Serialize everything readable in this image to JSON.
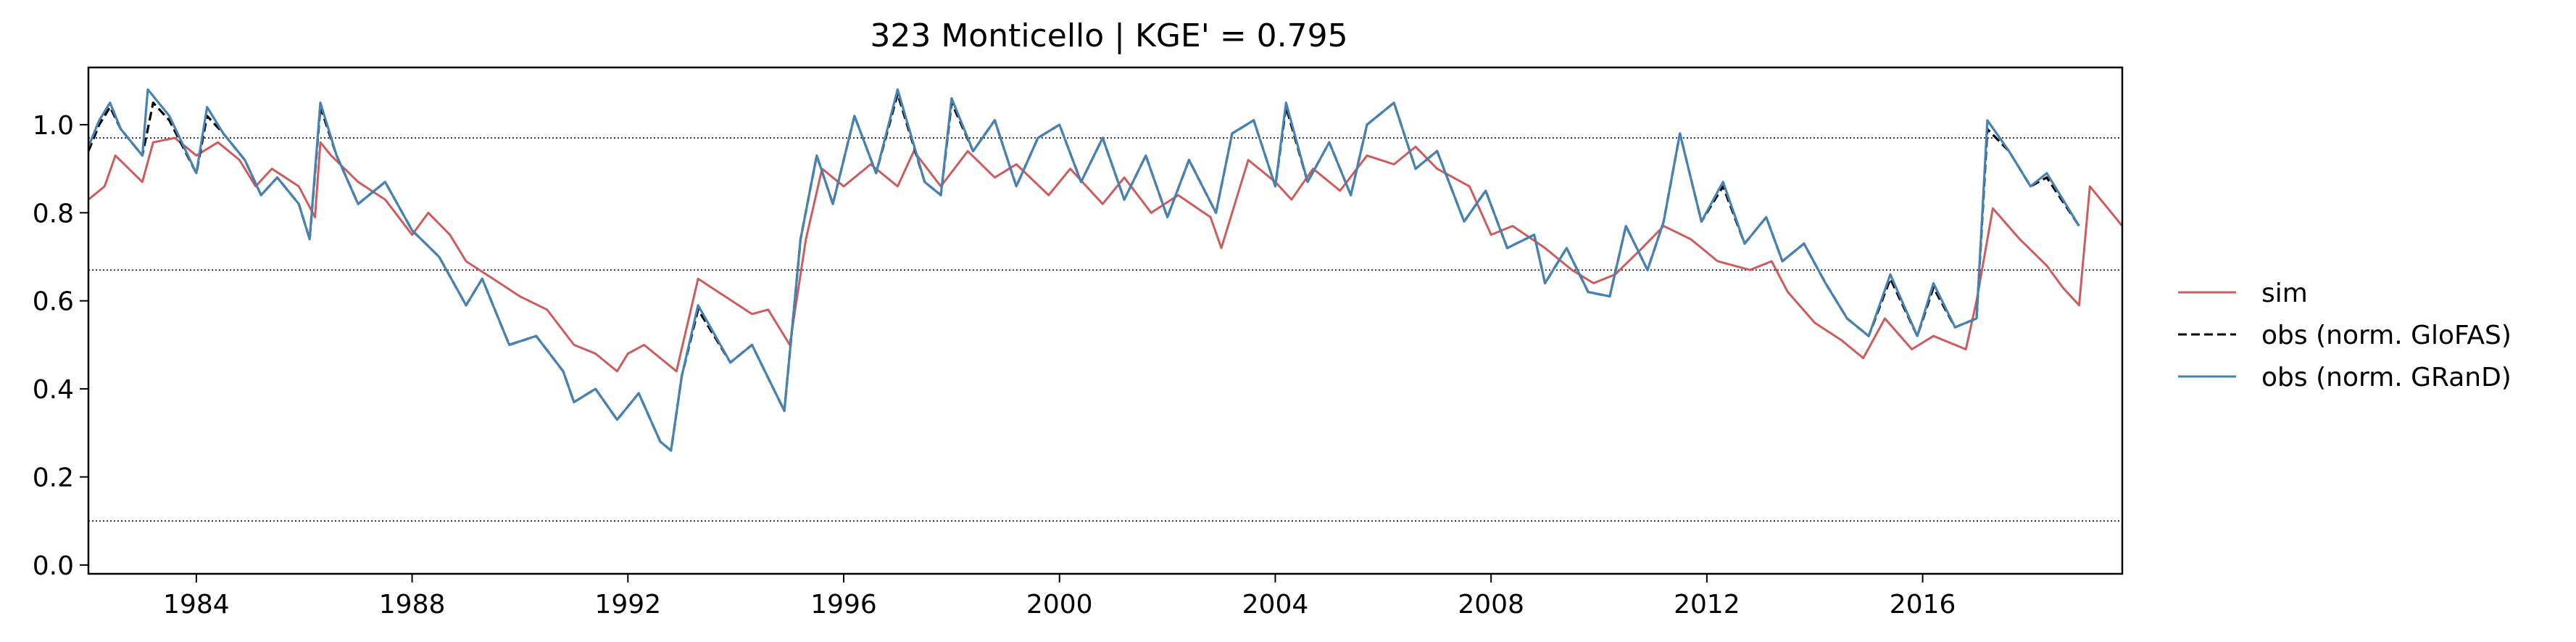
{
  "chart_data": {
    "type": "line",
    "title": "323  Monticello | KGE' = 0.795",
    "xlabel": "",
    "ylabel": "",
    "xlim": [
      1982.0,
      2019.7
    ],
    "ylim": [
      -0.02,
      1.13
    ],
    "x_ticks": [
      1984,
      1988,
      1992,
      1996,
      2000,
      2004,
      2008,
      2012,
      2016
    ],
    "x_tick_labels": [
      "1984",
      "1988",
      "1992",
      "1996",
      "2000",
      "2004",
      "2008",
      "2012",
      "2016"
    ],
    "y_ticks": [
      0.0,
      0.2,
      0.4,
      0.6,
      0.8,
      1.0
    ],
    "y_tick_labels": [
      "0.0",
      "0.2",
      "0.4",
      "0.6",
      "0.8",
      "1.0"
    ],
    "reference_lines": [
      0.97,
      0.67,
      0.1
    ],
    "grid": false,
    "legend_position": "right-outside",
    "series": [
      {
        "name": "sim",
        "color": "#cd5c5c",
        "style": "solid",
        "points": [
          [
            1982.0,
            0.83
          ],
          [
            1982.3,
            0.86
          ],
          [
            1982.5,
            0.93
          ],
          [
            1983.0,
            0.87
          ],
          [
            1983.2,
            0.96
          ],
          [
            1983.6,
            0.97
          ],
          [
            1984.0,
            0.93
          ],
          [
            1984.4,
            0.96
          ],
          [
            1984.8,
            0.92
          ],
          [
            1985.1,
            0.86
          ],
          [
            1985.4,
            0.9
          ],
          [
            1985.9,
            0.86
          ],
          [
            1986.2,
            0.79
          ],
          [
            1986.3,
            0.96
          ],
          [
            1986.5,
            0.93
          ],
          [
            1987.0,
            0.87
          ],
          [
            1987.5,
            0.83
          ],
          [
            1988.0,
            0.75
          ],
          [
            1988.3,
            0.8
          ],
          [
            1988.7,
            0.75
          ],
          [
            1989.0,
            0.69
          ],
          [
            1989.5,
            0.65
          ],
          [
            1990.0,
            0.61
          ],
          [
            1990.5,
            0.58
          ],
          [
            1991.0,
            0.5
          ],
          [
            1991.4,
            0.48
          ],
          [
            1991.8,
            0.44
          ],
          [
            1992.0,
            0.48
          ],
          [
            1992.3,
            0.5
          ],
          [
            1992.9,
            0.44
          ],
          [
            1993.3,
            0.65
          ],
          [
            1993.8,
            0.61
          ],
          [
            1994.3,
            0.57
          ],
          [
            1994.6,
            0.58
          ],
          [
            1995.0,
            0.5
          ],
          [
            1995.3,
            0.74
          ],
          [
            1995.6,
            0.9
          ],
          [
            1996.0,
            0.86
          ],
          [
            1996.5,
            0.91
          ],
          [
            1997.0,
            0.86
          ],
          [
            1997.3,
            0.94
          ],
          [
            1997.8,
            0.86
          ],
          [
            1998.3,
            0.94
          ],
          [
            1998.8,
            0.88
          ],
          [
            1999.2,
            0.91
          ],
          [
            1999.8,
            0.84
          ],
          [
            2000.2,
            0.9
          ],
          [
            2000.8,
            0.82
          ],
          [
            2001.2,
            0.88
          ],
          [
            2001.7,
            0.8
          ],
          [
            2002.2,
            0.84
          ],
          [
            2002.8,
            0.79
          ],
          [
            2003.0,
            0.72
          ],
          [
            2003.5,
            0.92
          ],
          [
            2004.0,
            0.87
          ],
          [
            2004.3,
            0.83
          ],
          [
            2004.7,
            0.9
          ],
          [
            2005.2,
            0.85
          ],
          [
            2005.7,
            0.93
          ],
          [
            2006.2,
            0.91
          ],
          [
            2006.6,
            0.95
          ],
          [
            2007.0,
            0.9
          ],
          [
            2007.6,
            0.86
          ],
          [
            2008.0,
            0.75
          ],
          [
            2008.4,
            0.77
          ],
          [
            2009.0,
            0.72
          ],
          [
            2009.5,
            0.67
          ],
          [
            2009.9,
            0.64
          ],
          [
            2010.3,
            0.66
          ],
          [
            2010.8,
            0.72
          ],
          [
            2011.2,
            0.77
          ],
          [
            2011.7,
            0.74
          ],
          [
            2012.2,
            0.69
          ],
          [
            2012.8,
            0.67
          ],
          [
            2013.2,
            0.69
          ],
          [
            2013.5,
            0.62
          ],
          [
            2014.0,
            0.55
          ],
          [
            2014.5,
            0.51
          ],
          [
            2014.9,
            0.47
          ],
          [
            2015.3,
            0.56
          ],
          [
            2015.8,
            0.49
          ],
          [
            2016.2,
            0.52
          ],
          [
            2016.8,
            0.49
          ],
          [
            2017.0,
            0.6
          ],
          [
            2017.3,
            0.81
          ],
          [
            2017.8,
            0.74
          ],
          [
            2018.3,
            0.68
          ],
          [
            2018.6,
            0.63
          ],
          [
            2018.9,
            0.59
          ],
          [
            2019.1,
            0.86
          ],
          [
            2019.7,
            0.77
          ]
        ]
      },
      {
        "name": "obs (norm. GloFAS)",
        "color": "#000000",
        "style": "dashed",
        "points": [
          [
            1982.0,
            0.94
          ],
          [
            1982.2,
            1.0
          ],
          [
            1982.4,
            1.04
          ],
          [
            1982.6,
            0.99
          ],
          [
            1983.0,
            0.93
          ],
          [
            1983.2,
            1.05
          ],
          [
            1983.5,
            1.01
          ],
          [
            1984.0,
            0.89
          ],
          [
            1984.2,
            1.02
          ],
          [
            1984.5,
            0.98
          ],
          [
            1984.9,
            0.92
          ],
          [
            1985.2,
            0.84
          ],
          [
            1985.5,
            0.88
          ],
          [
            1985.9,
            0.82
          ],
          [
            1986.1,
            0.74
          ],
          [
            1986.3,
            1.04
          ],
          [
            1986.6,
            0.93
          ],
          [
            1987.0,
            0.82
          ],
          [
            1987.5,
            0.87
          ],
          [
            1988.0,
            0.76
          ],
          [
            1988.5,
            0.7
          ],
          [
            1989.0,
            0.59
          ],
          [
            1989.3,
            0.65
          ],
          [
            1989.8,
            0.5
          ],
          [
            1990.3,
            0.52
          ],
          [
            1990.8,
            0.44
          ],
          [
            1991.0,
            0.37
          ],
          [
            1991.4,
            0.4
          ],
          [
            1991.8,
            0.33
          ],
          [
            1992.2,
            0.39
          ],
          [
            1992.6,
            0.28
          ],
          [
            1992.8,
            0.26
          ],
          [
            1993.0,
            0.43
          ],
          [
            1993.3,
            0.58
          ],
          [
            1993.9,
            0.46
          ],
          [
            1994.3,
            0.5
          ],
          [
            1994.9,
            0.35
          ],
          [
            1995.2,
            0.74
          ],
          [
            1995.5,
            0.93
          ],
          [
            1995.8,
            0.82
          ],
          [
            1996.2,
            1.02
          ],
          [
            1996.6,
            0.89
          ],
          [
            1997.0,
            1.07
          ],
          [
            1997.5,
            0.87
          ],
          [
            1997.8,
            0.84
          ],
          [
            1998.0,
            1.05
          ],
          [
            1998.4,
            0.94
          ],
          [
            1998.8,
            1.01
          ],
          [
            1999.2,
            0.86
          ],
          [
            1999.6,
            0.97
          ],
          [
            2000.0,
            1.0
          ],
          [
            2000.4,
            0.87
          ],
          [
            2000.8,
            0.97
          ],
          [
            2001.2,
            0.83
          ],
          [
            2001.6,
            0.93
          ],
          [
            2002.0,
            0.79
          ],
          [
            2002.4,
            0.92
          ],
          [
            2002.9,
            0.8
          ],
          [
            2003.2,
            0.98
          ],
          [
            2003.6,
            1.01
          ],
          [
            2004.0,
            0.86
          ],
          [
            2004.2,
            1.04
          ],
          [
            2004.6,
            0.87
          ],
          [
            2005.0,
            0.96
          ],
          [
            2005.4,
            0.84
          ],
          [
            2005.7,
            1.0
          ],
          [
            2006.2,
            1.05
          ],
          [
            2006.6,
            0.9
          ],
          [
            2007.0,
            0.94
          ],
          [
            2007.5,
            0.78
          ],
          [
            2007.9,
            0.85
          ],
          [
            2008.3,
            0.72
          ],
          [
            2008.8,
            0.75
          ],
          [
            2009.0,
            0.64
          ],
          [
            2009.4,
            0.72
          ],
          [
            2009.8,
            0.62
          ],
          [
            2010.2,
            0.61
          ],
          [
            2010.5,
            0.77
          ],
          [
            2010.9,
            0.67
          ],
          [
            2011.2,
            0.78
          ],
          [
            2011.5,
            0.98
          ],
          [
            2011.9,
            0.78
          ],
          [
            2012.3,
            0.86
          ],
          [
            2012.7,
            0.73
          ],
          [
            2013.1,
            0.79
          ],
          [
            2013.4,
            0.69
          ],
          [
            2013.8,
            0.73
          ],
          [
            2014.2,
            0.64
          ],
          [
            2014.6,
            0.56
          ],
          [
            2015.0,
            0.52
          ],
          [
            2015.4,
            0.65
          ],
          [
            2015.9,
            0.52
          ],
          [
            2016.2,
            0.63
          ],
          [
            2016.6,
            0.54
          ],
          [
            2017.0,
            0.56
          ],
          [
            2017.2,
            0.99
          ],
          [
            2017.6,
            0.94
          ],
          [
            2018.0,
            0.86
          ],
          [
            2018.3,
            0.88
          ],
          [
            2018.9,
            0.77
          ]
        ]
      },
      {
        "name": "obs (norm. GRanD)",
        "color": "#4682b4",
        "style": "solid",
        "points": [
          [
            1982.0,
            0.95
          ],
          [
            1982.2,
            1.01
          ],
          [
            1982.4,
            1.05
          ],
          [
            1982.6,
            0.99
          ],
          [
            1983.0,
            0.93
          ],
          [
            1983.1,
            1.08
          ],
          [
            1983.5,
            1.02
          ],
          [
            1984.0,
            0.89
          ],
          [
            1984.2,
            1.04
          ],
          [
            1984.5,
            0.98
          ],
          [
            1984.9,
            0.92
          ],
          [
            1985.2,
            0.84
          ],
          [
            1985.5,
            0.88
          ],
          [
            1985.9,
            0.82
          ],
          [
            1986.1,
            0.74
          ],
          [
            1986.3,
            1.05
          ],
          [
            1986.6,
            0.93
          ],
          [
            1987.0,
            0.82
          ],
          [
            1987.5,
            0.87
          ],
          [
            1988.0,
            0.76
          ],
          [
            1988.5,
            0.7
          ],
          [
            1989.0,
            0.59
          ],
          [
            1989.3,
            0.65
          ],
          [
            1989.8,
            0.5
          ],
          [
            1990.3,
            0.52
          ],
          [
            1990.8,
            0.44
          ],
          [
            1991.0,
            0.37
          ],
          [
            1991.4,
            0.4
          ],
          [
            1991.8,
            0.33
          ],
          [
            1992.2,
            0.39
          ],
          [
            1992.6,
            0.28
          ],
          [
            1992.8,
            0.26
          ],
          [
            1993.0,
            0.43
          ],
          [
            1993.3,
            0.59
          ],
          [
            1993.9,
            0.46
          ],
          [
            1994.3,
            0.5
          ],
          [
            1994.9,
            0.35
          ],
          [
            1995.2,
            0.74
          ],
          [
            1995.5,
            0.93
          ],
          [
            1995.8,
            0.82
          ],
          [
            1996.2,
            1.02
          ],
          [
            1996.6,
            0.89
          ],
          [
            1997.0,
            1.08
          ],
          [
            1997.5,
            0.87
          ],
          [
            1997.8,
            0.84
          ],
          [
            1998.0,
            1.06
          ],
          [
            1998.4,
            0.94
          ],
          [
            1998.8,
            1.01
          ],
          [
            1999.2,
            0.86
          ],
          [
            1999.6,
            0.97
          ],
          [
            2000.0,
            1.0
          ],
          [
            2000.4,
            0.87
          ],
          [
            2000.8,
            0.97
          ],
          [
            2001.2,
            0.83
          ],
          [
            2001.6,
            0.93
          ],
          [
            2002.0,
            0.79
          ],
          [
            2002.4,
            0.92
          ],
          [
            2002.9,
            0.8
          ],
          [
            2003.2,
            0.98
          ],
          [
            2003.6,
            1.01
          ],
          [
            2004.0,
            0.86
          ],
          [
            2004.2,
            1.05
          ],
          [
            2004.6,
            0.87
          ],
          [
            2005.0,
            0.96
          ],
          [
            2005.4,
            0.84
          ],
          [
            2005.7,
            1.0
          ],
          [
            2006.2,
            1.05
          ],
          [
            2006.6,
            0.9
          ],
          [
            2007.0,
            0.94
          ],
          [
            2007.5,
            0.78
          ],
          [
            2007.9,
            0.85
          ],
          [
            2008.3,
            0.72
          ],
          [
            2008.8,
            0.75
          ],
          [
            2009.0,
            0.64
          ],
          [
            2009.4,
            0.72
          ],
          [
            2009.8,
            0.62
          ],
          [
            2010.2,
            0.61
          ],
          [
            2010.5,
            0.77
          ],
          [
            2010.9,
            0.67
          ],
          [
            2011.2,
            0.78
          ],
          [
            2011.5,
            0.98
          ],
          [
            2011.9,
            0.78
          ],
          [
            2012.3,
            0.87
          ],
          [
            2012.7,
            0.73
          ],
          [
            2013.1,
            0.79
          ],
          [
            2013.4,
            0.69
          ],
          [
            2013.8,
            0.73
          ],
          [
            2014.2,
            0.64
          ],
          [
            2014.6,
            0.56
          ],
          [
            2015.0,
            0.52
          ],
          [
            2015.4,
            0.66
          ],
          [
            2015.9,
            0.52
          ],
          [
            2016.2,
            0.64
          ],
          [
            2016.6,
            0.54
          ],
          [
            2017.0,
            0.56
          ],
          [
            2017.2,
            1.01
          ],
          [
            2017.6,
            0.94
          ],
          [
            2018.0,
            0.86
          ],
          [
            2018.3,
            0.89
          ],
          [
            2018.9,
            0.77
          ]
        ]
      }
    ]
  }
}
